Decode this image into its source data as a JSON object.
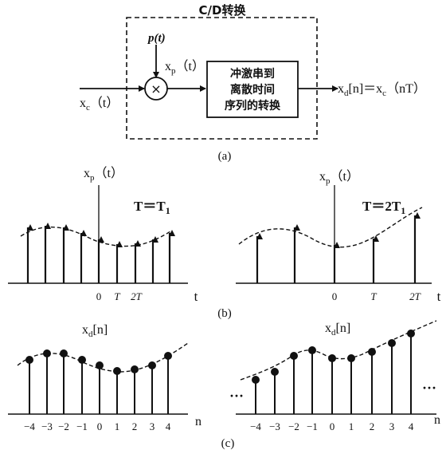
{
  "colors": {
    "ink": "#111111",
    "background": "#ffffff"
  },
  "part_a": {
    "box_title": "C/D转换",
    "pulse_label": "p(t)",
    "xp_label": "x",
    "xp_sub": "p",
    "xp_arg": "（t）",
    "input_label": "x",
    "input_sub": "c",
    "input_arg": "（t）",
    "multiplier_symbol": "×",
    "converter_lines": [
      "冲激串到",
      "离散时间",
      "序列的转换"
    ],
    "output_x": "x",
    "output_sub": "d",
    "output_rest": "[n]＝x",
    "output_sub2": "c",
    "output_arg": "（nT）",
    "caption": "(a)"
  },
  "part_b": {
    "caption": "(b)",
    "left": {
      "ylabel_x": "x",
      "ylabel_sub": "p",
      "ylabel_arg": "（t）",
      "period_label": "T＝T",
      "period_sub": "1",
      "ticks": [
        "0",
        "T",
        "2T"
      ],
      "xlabel": "t"
    },
    "right": {
      "ylabel_x": "x",
      "ylabel_sub": "p",
      "ylabel_arg": "（t）",
      "period_label": "T＝2T",
      "period_sub": "1",
      "ticks": [
        "0",
        "T",
        "2T"
      ],
      "xlabel": "t"
    }
  },
  "part_c": {
    "caption": "(c)",
    "left": {
      "ylabel_x": "x",
      "ylabel_sub": "d",
      "ylabel_rest": "[n]",
      "ticks": [
        "−4",
        "−3",
        "−2",
        "−1",
        "0",
        "1",
        "2",
        "3",
        "4"
      ],
      "xlabel": "n"
    },
    "right": {
      "ylabel_x": "x",
      "ylabel_sub": "d",
      "ylabel_rest": "[n]",
      "ticks": [
        "−4",
        "−3",
        "−2",
        "−1",
        "0",
        "1",
        "2",
        "3",
        "4"
      ],
      "xlabel": "n",
      "ellipsis_left": "···",
      "ellipsis_right": "···"
    }
  }
}
